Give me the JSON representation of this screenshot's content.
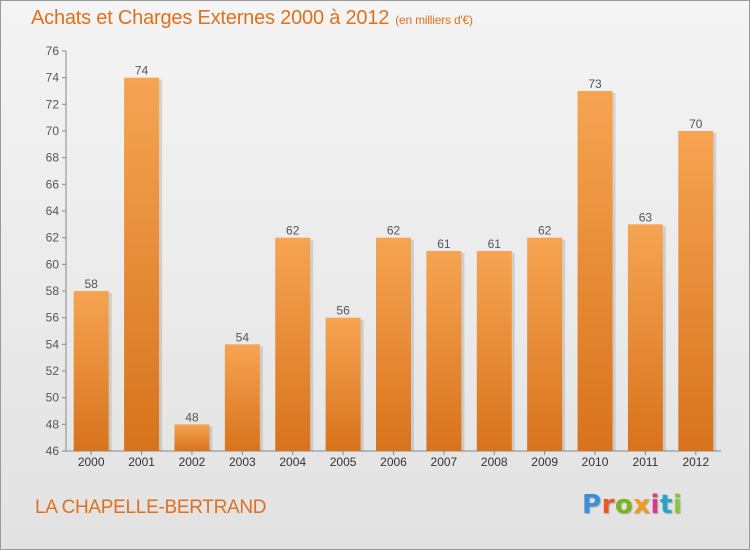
{
  "header": {
    "title": "Achats et Charges Externes 2000 à 2012",
    "unit": "(en milliers d'€)"
  },
  "footer": {
    "location": "LA CHAPELLE-BERTRAND",
    "logo_letters": [
      "P",
      "r",
      "o",
      "x",
      "i",
      "t",
      "i"
    ],
    "logo_colors": [
      "#3a8fd6",
      "#e9572b",
      "#7ab51d",
      "#f29a1e",
      "#d33a8c",
      "#2aa3c9",
      "#8cc63f"
    ]
  },
  "chart_data": {
    "type": "bar",
    "title": "Achats et Charges Externes 2000 à 2012",
    "subtitle": "(en milliers d'€)",
    "categories": [
      "2000",
      "2001",
      "2002",
      "2003",
      "2004",
      "2005",
      "2006",
      "2007",
      "2008",
      "2009",
      "2010",
      "2011",
      "2012"
    ],
    "values": [
      58,
      74,
      48,
      54,
      62,
      56,
      62,
      61,
      61,
      62,
      73,
      63,
      70
    ],
    "ylim": [
      46,
      76
    ],
    "yticks": [
      46,
      48,
      50,
      52,
      54,
      56,
      58,
      60,
      62,
      64,
      66,
      68,
      70,
      72,
      74,
      76
    ],
    "grid": false,
    "colors": {
      "bar_light": "#f6a452",
      "bar_dark": "#d8731c",
      "axis": "#888888",
      "label": "#555555"
    }
  }
}
